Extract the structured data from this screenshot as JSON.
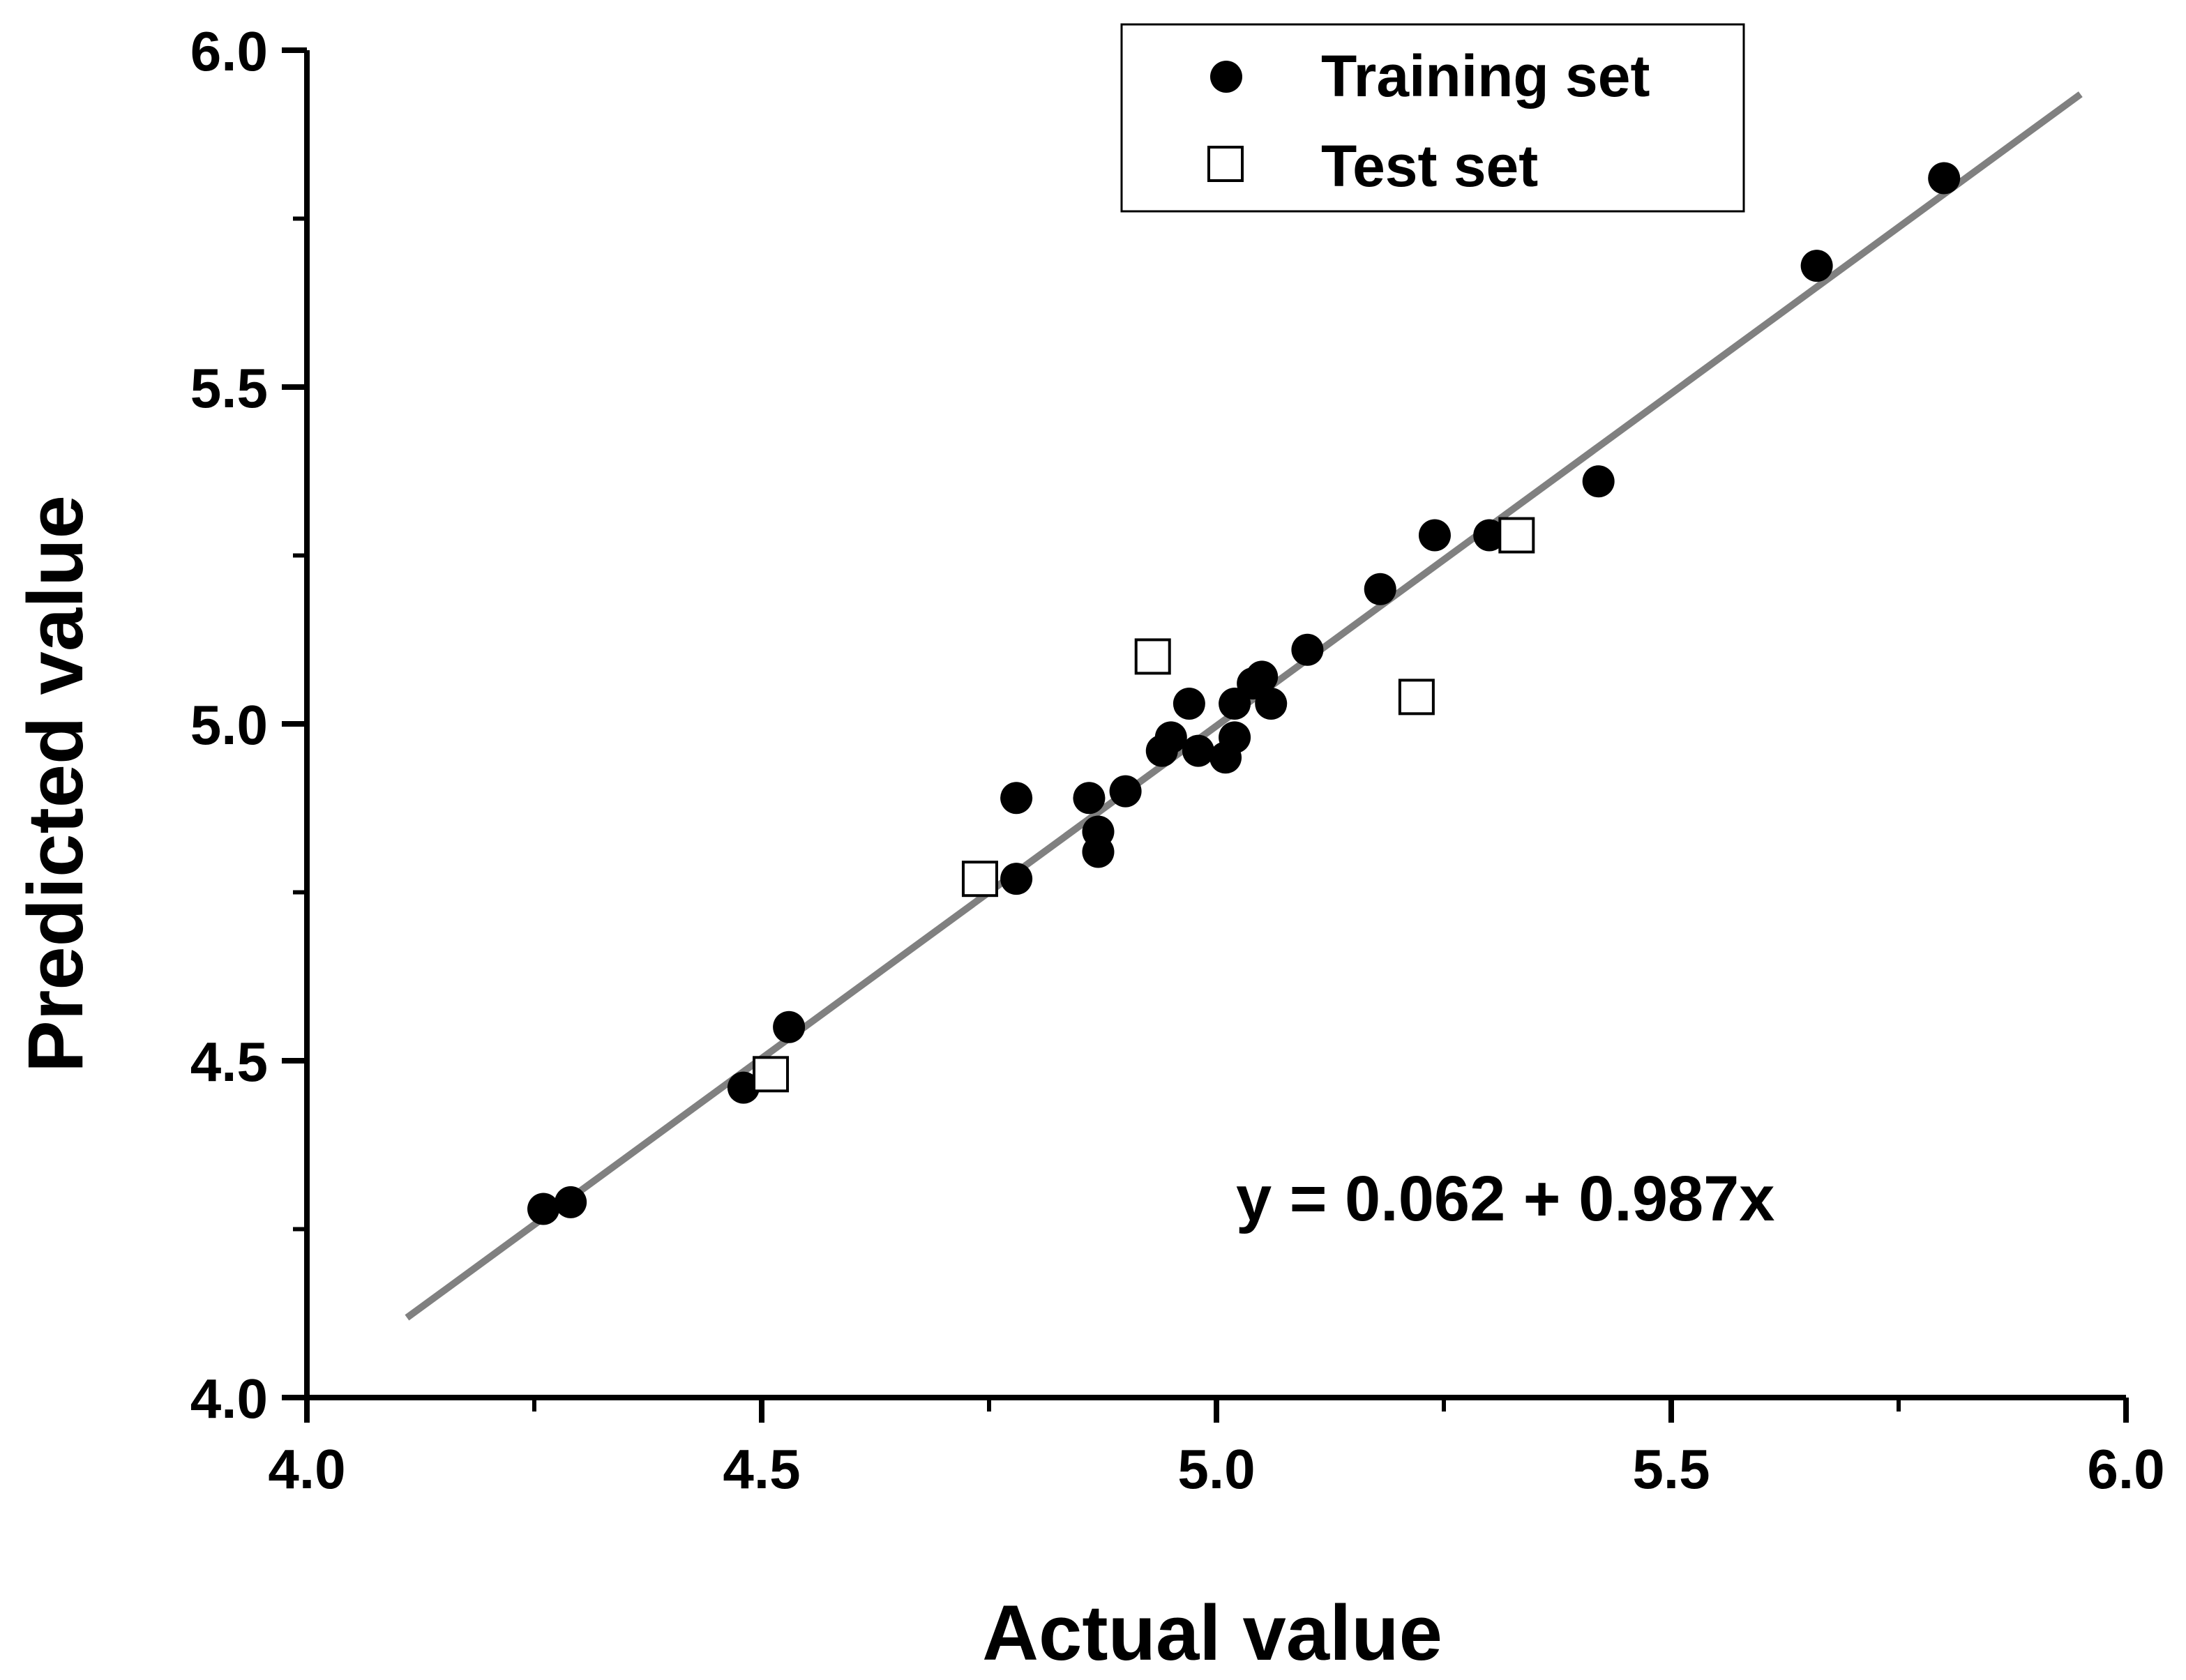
{
  "chart_data": {
    "type": "scatter",
    "title": "",
    "xlabel": "Actual value",
    "ylabel": "Predicted value",
    "xlim": [
      4.0,
      6.0
    ],
    "ylim": [
      4.0,
      6.0
    ],
    "xticks": [
      "4.0",
      "4.5",
      "5.0",
      "5.5",
      "6.0"
    ],
    "yticks": [
      "4.0",
      "4.5",
      "5.0",
      "5.5",
      "6.0"
    ],
    "legend_position": "top-center",
    "series": [
      {
        "name": "Training set",
        "marker": "filled-circle",
        "color": "#000000",
        "points": [
          [
            4.26,
            4.28
          ],
          [
            4.29,
            4.29
          ],
          [
            4.48,
            4.46
          ],
          [
            4.53,
            4.55
          ],
          [
            4.78,
            4.77
          ],
          [
            4.78,
            4.89
          ],
          [
            4.86,
            4.89
          ],
          [
            4.87,
            4.81
          ],
          [
            4.87,
            4.84
          ],
          [
            4.9,
            4.9
          ],
          [
            4.94,
            4.96
          ],
          [
            4.95,
            4.98
          ],
          [
            4.97,
            5.03
          ],
          [
            4.98,
            4.96
          ],
          [
            5.01,
            4.95
          ],
          [
            5.02,
            4.98
          ],
          [
            5.02,
            5.03
          ],
          [
            5.04,
            5.06
          ],
          [
            5.05,
            5.07
          ],
          [
            5.06,
            5.03
          ],
          [
            5.1,
            5.11
          ],
          [
            5.18,
            5.2
          ],
          [
            5.24,
            5.28
          ],
          [
            5.3,
            5.28
          ],
          [
            5.42,
            5.36
          ],
          [
            5.66,
            5.68
          ],
          [
            5.8,
            5.81
          ]
        ]
      },
      {
        "name": "Test set",
        "marker": "open-square",
        "color": "#000000",
        "points": [
          [
            4.51,
            4.48
          ],
          [
            4.74,
            4.77
          ],
          [
            4.93,
            5.1
          ],
          [
            5.22,
            5.04
          ],
          [
            5.33,
            5.28
          ]
        ]
      }
    ],
    "fit_line": {
      "intercept": 0.062,
      "slope": 0.987,
      "x_range": [
        4.11,
        5.95
      ],
      "color": "#808080"
    },
    "annotations": [
      {
        "text": "y = 0.062 + 0.987x"
      }
    ]
  }
}
